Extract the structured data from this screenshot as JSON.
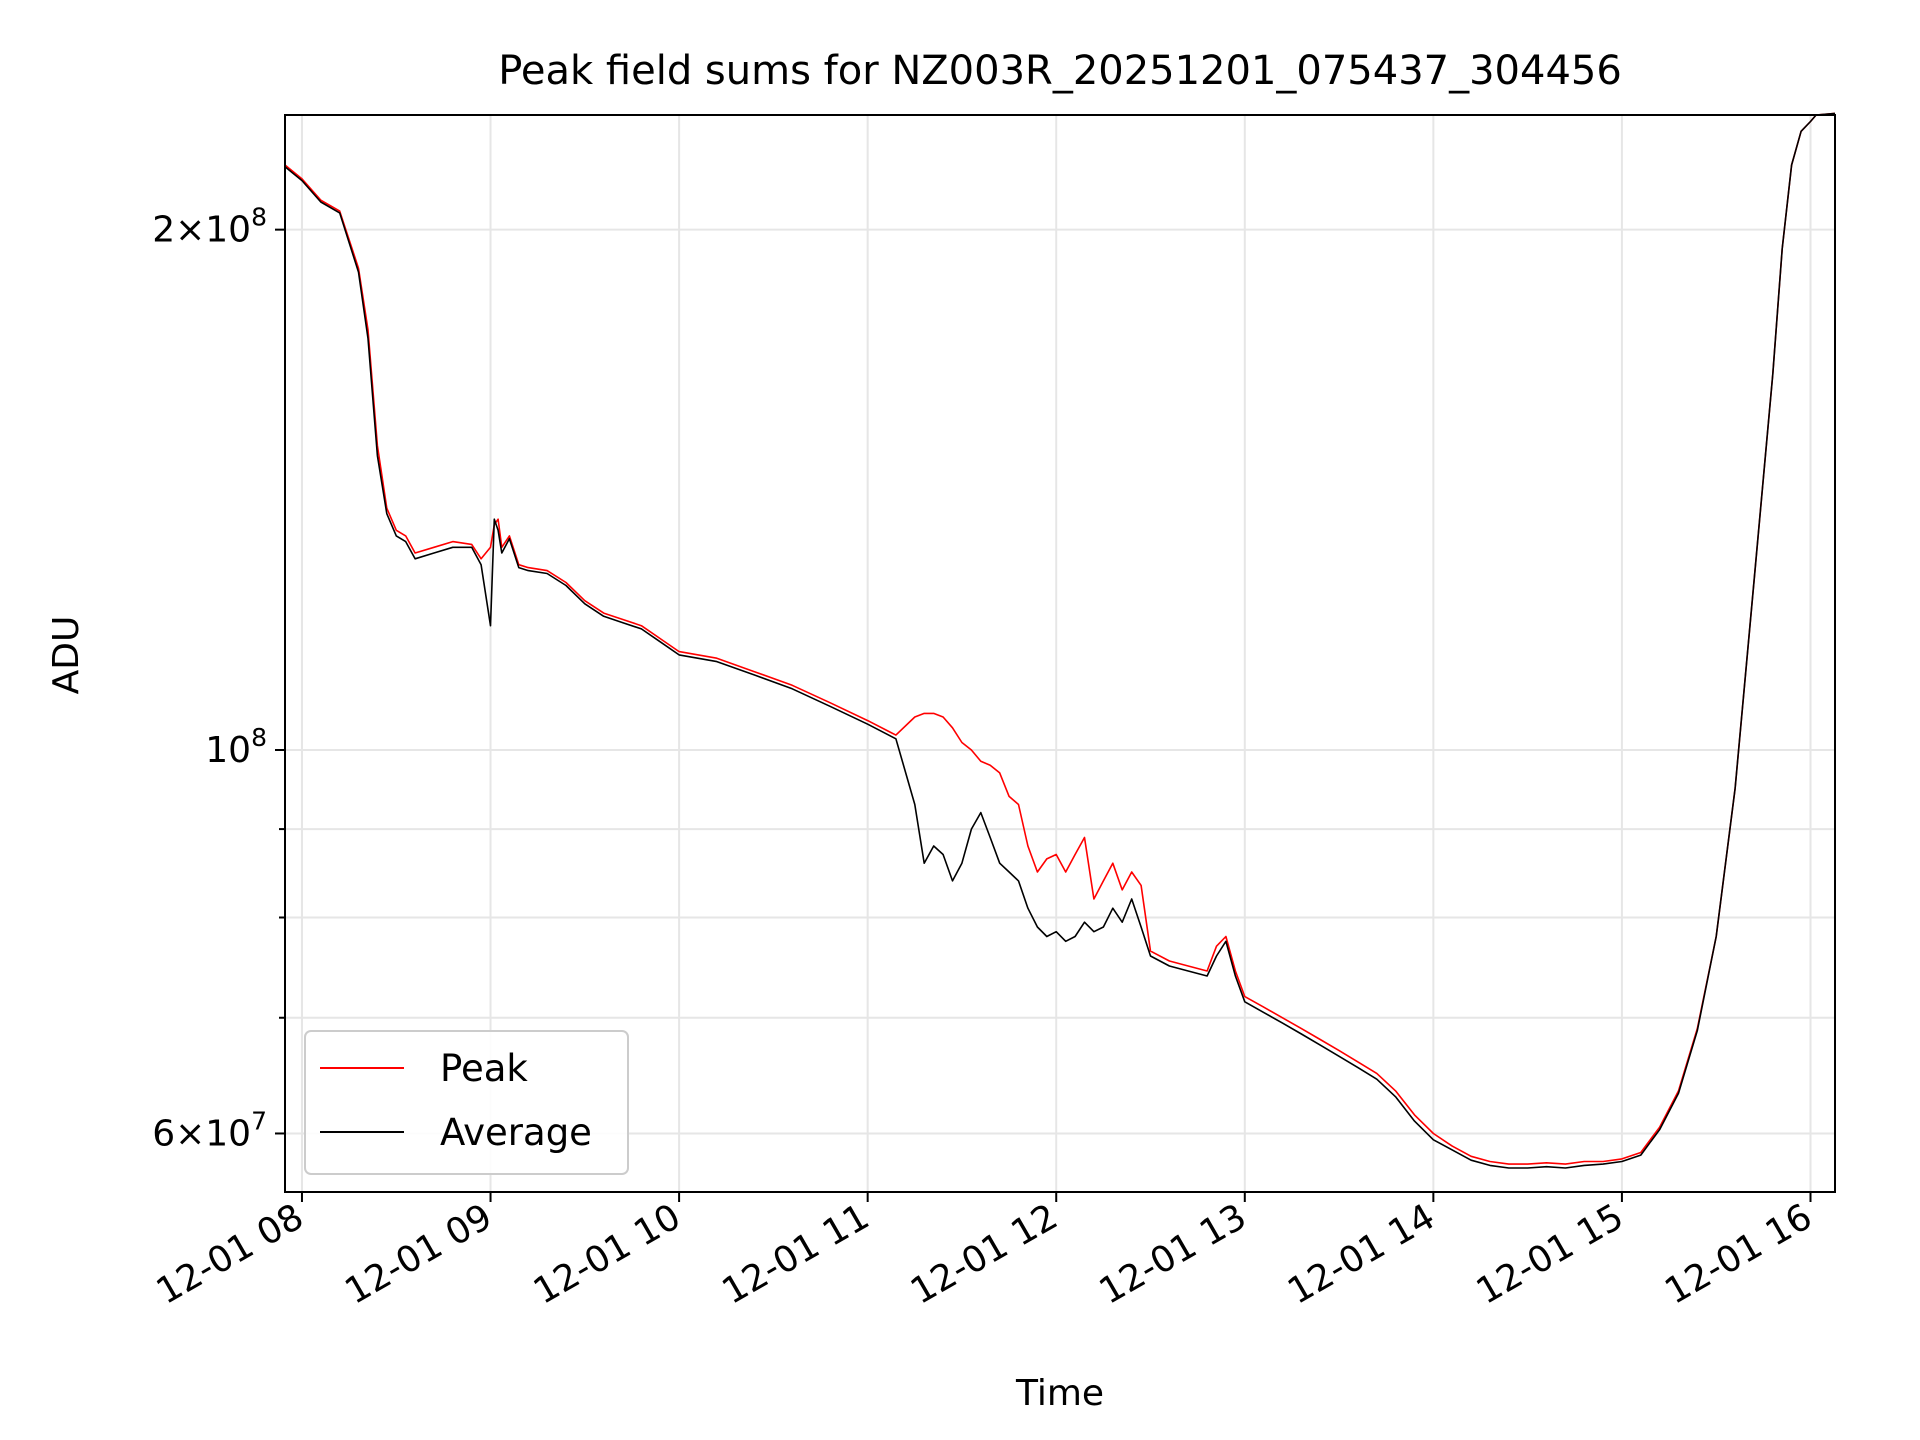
{
  "chart_data": {
    "type": "line",
    "title": "Peak field sums for NZ003R_20251201_075437_304456",
    "xlabel": "Time",
    "ylabel": "ADU",
    "yscale": "log",
    "grid": true,
    "legend_position": "lower-left",
    "xlim": [
      7.91,
      16.13
    ],
    "ylim": [
      55500000,
      233000000
    ],
    "x_ticks": [
      {
        "value": 8,
        "label": "12-01 08"
      },
      {
        "value": 9,
        "label": "12-01 09"
      },
      {
        "value": 10,
        "label": "12-01 10"
      },
      {
        "value": 11,
        "label": "12-01 11"
      },
      {
        "value": 12,
        "label": "12-01 12"
      },
      {
        "value": 13,
        "label": "12-01 13"
      },
      {
        "value": 14,
        "label": "12-01 14"
      },
      {
        "value": 15,
        "label": "12-01 15"
      },
      {
        "value": 16,
        "label": "12-01 16"
      }
    ],
    "y_major_ticks": [
      {
        "value": 60000000,
        "mantissa": "6",
        "exponent": "7"
      },
      {
        "value": 100000000,
        "mantissa": "",
        "exponent": "8"
      },
      {
        "value": 200000000,
        "mantissa": "2",
        "exponent": "8"
      }
    ],
    "y_minor_ticks": [
      70000000,
      80000000,
      90000000
    ],
    "series": [
      {
        "name": "Peak",
        "color": "#ff0000",
        "x": [
          7.91,
          8.0,
          8.1,
          8.2,
          8.3,
          8.35,
          8.4,
          8.45,
          8.5,
          8.55,
          8.6,
          8.7,
          8.8,
          8.9,
          8.95,
          9.0,
          9.02,
          9.04,
          9.06,
          9.1,
          9.15,
          9.2,
          9.3,
          9.4,
          9.5,
          9.6,
          9.7,
          9.8,
          9.9,
          10.0,
          10.2,
          10.4,
          10.6,
          10.8,
          11.0,
          11.15,
          11.25,
          11.3,
          11.35,
          11.4,
          11.45,
          11.5,
          11.55,
          11.6,
          11.65,
          11.7,
          11.75,
          11.8,
          11.85,
          11.9,
          11.95,
          12.0,
          12.05,
          12.1,
          12.15,
          12.2,
          12.25,
          12.3,
          12.35,
          12.4,
          12.45,
          12.5,
          12.6,
          12.7,
          12.8,
          12.85,
          12.9,
          12.95,
          13.0,
          13.1,
          13.2,
          13.3,
          13.4,
          13.5,
          13.6,
          13.7,
          13.8,
          13.9,
          14.0,
          14.1,
          14.2,
          14.3,
          14.4,
          14.5,
          14.6,
          14.7,
          14.8,
          14.9,
          15.0,
          15.1,
          15.15,
          15.2,
          15.3,
          15.4,
          15.5,
          15.6,
          15.7,
          15.8,
          15.85,
          15.9,
          15.95,
          16.0,
          16.03,
          16.13
        ],
        "values": [
          218000000,
          214000000,
          208000000,
          205000000,
          190000000,
          175000000,
          150000000,
          138000000,
          134000000,
          133000000,
          130000000,
          131000000,
          132000000,
          131500000,
          129000000,
          131000000,
          135000000,
          136000000,
          131000000,
          133000000,
          128000000,
          127500000,
          127000000,
          125000000,
          122000000,
          120000000,
          119000000,
          118000000,
          116000000,
          114000000,
          113000000,
          111000000,
          109000000,
          106500000,
          104000000,
          102000000,
          104500000,
          105000000,
          105000000,
          104500000,
          103000000,
          101000000,
          100000000,
          98500000,
          98000000,
          97000000,
          94000000,
          93000000,
          88000000,
          85000000,
          86500000,
          87000000,
          85000000,
          87000000,
          89000000,
          82000000,
          84000000,
          86000000,
          83000000,
          85000000,
          83500000,
          76500000,
          75500000,
          75000000,
          74500000,
          77000000,
          78000000,
          74500000,
          72000000,
          71000000,
          70000000,
          69000000,
          68000000,
          67000000,
          66000000,
          65000000,
          63500000,
          61500000,
          60000000,
          59000000,
          58200000,
          57800000,
          57600000,
          57600000,
          57700000,
          57600000,
          57800000,
          57800000,
          58000000,
          58500000,
          59500000,
          60500000,
          63500000,
          69000000,
          78000000,
          95000000,
          125000000,
          165000000,
          195000000,
          218000000,
          228000000,
          231000000,
          233000000,
          233500000
        ]
      },
      {
        "name": "Average",
        "color": "#000000",
        "x": [
          7.91,
          8.0,
          8.1,
          8.2,
          8.3,
          8.35,
          8.4,
          8.45,
          8.5,
          8.55,
          8.6,
          8.7,
          8.8,
          8.9,
          8.95,
          9.0,
          9.02,
          9.04,
          9.06,
          9.1,
          9.15,
          9.2,
          9.3,
          9.4,
          9.5,
          9.6,
          9.7,
          9.8,
          9.9,
          10.0,
          10.2,
          10.4,
          10.6,
          10.8,
          11.0,
          11.15,
          11.25,
          11.3,
          11.35,
          11.4,
          11.45,
          11.5,
          11.55,
          11.6,
          11.65,
          11.7,
          11.75,
          11.8,
          11.85,
          11.9,
          11.95,
          12.0,
          12.05,
          12.1,
          12.15,
          12.2,
          12.25,
          12.3,
          12.35,
          12.4,
          12.45,
          12.5,
          12.6,
          12.7,
          12.8,
          12.85,
          12.9,
          12.95,
          13.0,
          13.1,
          13.2,
          13.3,
          13.4,
          13.5,
          13.6,
          13.7,
          13.8,
          13.9,
          14.0,
          14.1,
          14.2,
          14.3,
          14.4,
          14.5,
          14.6,
          14.7,
          14.8,
          14.9,
          15.0,
          15.1,
          15.15,
          15.2,
          15.3,
          15.4,
          15.5,
          15.6,
          15.7,
          15.8,
          15.85,
          15.9,
          15.95,
          16.0,
          16.03,
          16.13
        ],
        "values": [
          217500000,
          213500000,
          207500000,
          204500000,
          189000000,
          173000000,
          148000000,
          137000000,
          133000000,
          132000000,
          129000000,
          130000000,
          131000000,
          131000000,
          128000000,
          118000000,
          136000000,
          134000000,
          130000000,
          132500000,
          127500000,
          127000000,
          126500000,
          124500000,
          121500000,
          119500000,
          118500000,
          117500000,
          115500000,
          113500000,
          112500000,
          110500000,
          108500000,
          106000000,
          103500000,
          101500000,
          93000000,
          86000000,
          88000000,
          87000000,
          84000000,
          86000000,
          90000000,
          92000000,
          89000000,
          86000000,
          85000000,
          84000000,
          81000000,
          79000000,
          78000000,
          78500000,
          77500000,
          78000000,
          79500000,
          78500000,
          79000000,
          81000000,
          79500000,
          82000000,
          79000000,
          76000000,
          75000000,
          74500000,
          74000000,
          76000000,
          77500000,
          74000000,
          71500000,
          70500000,
          69500000,
          68500000,
          67500000,
          66500000,
          65500000,
          64500000,
          63000000,
          61000000,
          59500000,
          58700000,
          57900000,
          57500000,
          57300000,
          57300000,
          57400000,
          57300000,
          57500000,
          57600000,
          57800000,
          58300000,
          59300000,
          60300000,
          63300000,
          68800000,
          78000000,
          95000000,
          125000000,
          165000000,
          195000000,
          218000000,
          228000000,
          231000000,
          233000000,
          233500000
        ]
      }
    ]
  }
}
